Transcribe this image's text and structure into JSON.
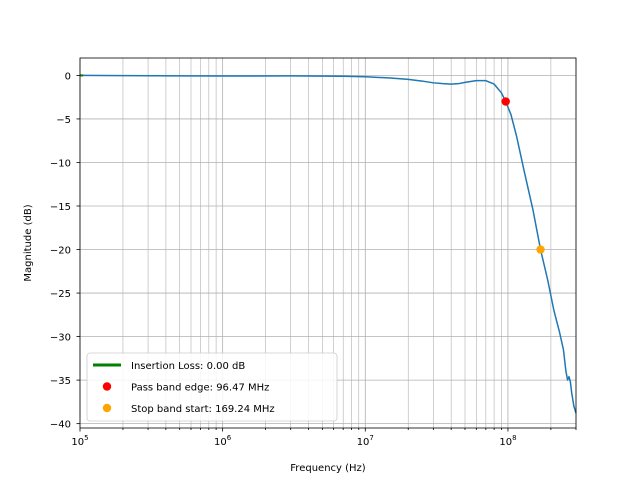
{
  "chart_data": {
    "type": "line",
    "title": "",
    "xlabel": "Frequency (Hz)",
    "ylabel": "Magnitude (dB)",
    "x_scale": "log",
    "xlim": [
      100000,
      300000000
    ],
    "ylim": [
      -40.5,
      2
    ],
    "grid": true,
    "legend_position": "lower-left",
    "x_tick_labels": [
      {
        "value": 100000,
        "base": "10",
        "exp": "5"
      },
      {
        "value": 1000000,
        "base": "10",
        "exp": "6"
      },
      {
        "value": 10000000,
        "base": "10",
        "exp": "7"
      },
      {
        "value": 100000000,
        "base": "10",
        "exp": "8"
      }
    ],
    "y_ticks": [
      0,
      -5,
      -10,
      -15,
      -20,
      -25,
      -30,
      -35,
      -40
    ],
    "y_tick_labels": [
      "0",
      "−5",
      "−10",
      "−15",
      "−20",
      "−25",
      "−30",
      "−35",
      "−40"
    ],
    "series": [
      {
        "name": "",
        "color": "#1f77b4",
        "points": [
          [
            100000,
            0.0
          ],
          [
            200000,
            -0.02
          ],
          [
            500000,
            -0.05
          ],
          [
            1000000,
            -0.07
          ],
          [
            3000000,
            -0.05
          ],
          [
            7000000,
            -0.1
          ],
          [
            10000000,
            -0.15
          ],
          [
            15000000,
            -0.3
          ],
          [
            20000000,
            -0.45
          ],
          [
            25000000,
            -0.65
          ],
          [
            30000000,
            -0.85
          ],
          [
            35000000,
            -0.95
          ],
          [
            40000000,
            -1.0
          ],
          [
            45000000,
            -0.95
          ],
          [
            50000000,
            -0.8
          ],
          [
            60000000,
            -0.6
          ],
          [
            70000000,
            -0.6
          ],
          [
            80000000,
            -1.0
          ],
          [
            90000000,
            -2.0
          ],
          [
            96470000,
            -3.0
          ],
          [
            105000000,
            -4.5
          ],
          [
            115000000,
            -7.0
          ],
          [
            130000000,
            -11.0
          ],
          [
            150000000,
            -15.5
          ],
          [
            169240000,
            -20.0
          ],
          [
            190000000,
            -23.5
          ],
          [
            210000000,
            -27.0
          ],
          [
            230000000,
            -29.5
          ],
          [
            245000000,
            -31.5
          ],
          [
            255000000,
            -34.0
          ],
          [
            262000000,
            -35.0
          ],
          [
            268000000,
            -34.6
          ],
          [
            274000000,
            -35.2
          ],
          [
            280000000,
            -36.5
          ],
          [
            290000000,
            -38.0
          ],
          [
            300000000,
            -38.8
          ]
        ]
      }
    ],
    "legend": [
      {
        "label": "Insertion Loss: 0.00 dB",
        "kind": "line",
        "color": "#008000"
      },
      {
        "label": "Pass band edge: 96.47 MHz",
        "kind": "marker",
        "color": "#ff0000"
      },
      {
        "label": "Stop band start: 169.24 MHz",
        "kind": "marker",
        "color": "#ffa500"
      }
    ],
    "markers": [
      {
        "x": 96470000,
        "y": -3.0,
        "color": "#ff0000"
      },
      {
        "x": 169240000,
        "y": -20.0,
        "color": "#ffa500"
      }
    ],
    "insertion_loss_line": {
      "color": "#008000",
      "y": 0.0,
      "x_range": [
        100000,
        102000
      ]
    }
  }
}
